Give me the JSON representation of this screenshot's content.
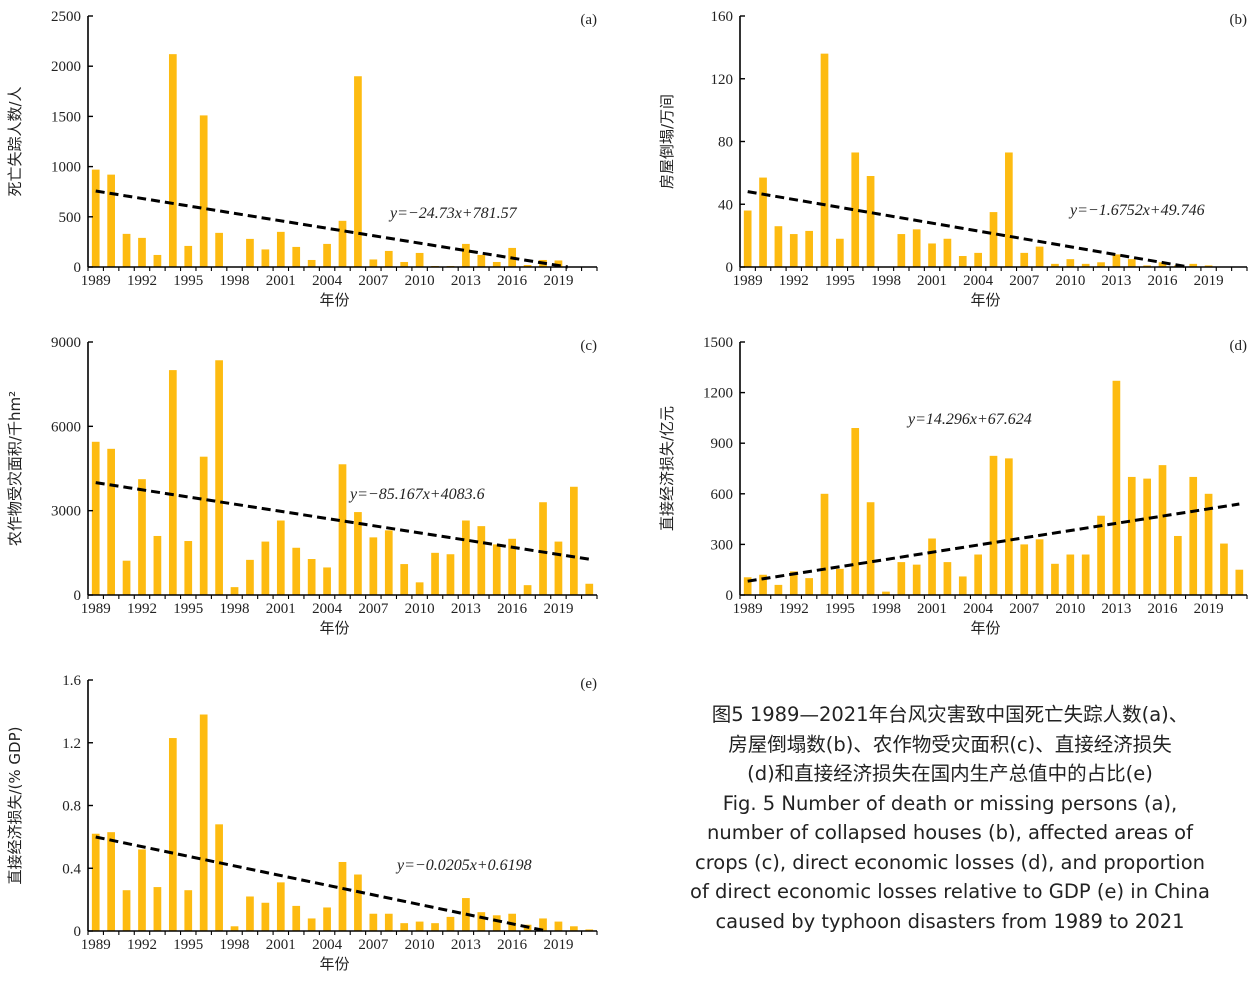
{
  "chart_data": [
    {
      "type": "bar",
      "panel_label": "(a)",
      "ylabel": "死亡失踪人数/人",
      "xlabel": "年份",
      "ylim": [
        0,
        2500
      ],
      "yticks": [
        0,
        500,
        1000,
        1500,
        2000,
        2500
      ],
      "xtick_labels": [
        "1989",
        "1992",
        "1995",
        "1998",
        "2001",
        "2004",
        "2007",
        "2010",
        "2013",
        "2016",
        "2019"
      ],
      "trendline": {
        "equation": "y=−24.73x+781.57",
        "slope": -24.73,
        "intercept": 781.57
      },
      "categories": [
        "1989",
        "1990",
        "1991",
        "1992",
        "1993",
        "1994",
        "1995",
        "1996",
        "1997",
        "1998",
        "1999",
        "2000",
        "2001",
        "2002",
        "2003",
        "2004",
        "2005",
        "2006",
        "2007",
        "2008",
        "2009",
        "2010",
        "2011",
        "2012",
        "2013",
        "2014",
        "2015",
        "2016",
        "2017",
        "2018",
        "2019",
        "2020",
        "2021"
      ],
      "values": [
        970,
        920,
        330,
        290,
        120,
        2120,
        210,
        1510,
        340,
        0,
        280,
        175,
        350,
        200,
        70,
        230,
        460,
        1900,
        75,
        160,
        50,
        140,
        10,
        10,
        230,
        120,
        50,
        190,
        20,
        70,
        65,
        0,
        0
      ]
    },
    {
      "type": "bar",
      "panel_label": "(b)",
      "ylabel": "房屋倒塌/万间",
      "xlabel": "年份",
      "ylim": [
        0,
        160
      ],
      "yticks": [
        0,
        40,
        80,
        120,
        160
      ],
      "xtick_labels": [
        "1989",
        "1992",
        "1995",
        "1998",
        "2001",
        "2004",
        "2007",
        "2010",
        "2013",
        "2016",
        "2019"
      ],
      "trendline": {
        "equation": "y=−1.6752x+49.746",
        "slope": -1.6752,
        "intercept": 49.746
      },
      "categories": [
        "1989",
        "1990",
        "1991",
        "1992",
        "1993",
        "1994",
        "1995",
        "1996",
        "1997",
        "1998",
        "1999",
        "2000",
        "2001",
        "2002",
        "2003",
        "2004",
        "2005",
        "2006",
        "2007",
        "2008",
        "2009",
        "2010",
        "2011",
        "2012",
        "2013",
        "2014",
        "2015",
        "2016",
        "2017",
        "2018",
        "2019",
        "2020",
        "2021"
      ],
      "values": [
        36,
        57,
        26,
        21,
        23,
        136,
        18,
        73,
        58,
        0,
        21,
        24,
        15,
        18,
        7,
        9,
        35,
        73,
        9,
        13,
        2,
        5,
        2,
        3,
        8,
        5,
        1,
        3,
        1,
        2,
        1,
        0,
        0
      ]
    },
    {
      "type": "bar",
      "panel_label": "(c)",
      "ylabel": "农作物受灾面积/千hm²",
      "xlabel": "年份",
      "ylim": [
        0,
        9000
      ],
      "yticks": [
        0,
        3000,
        6000,
        9000
      ],
      "xtick_labels": [
        "1989",
        "1992",
        "1995",
        "1998",
        "2001",
        "2004",
        "2007",
        "2010",
        "2013",
        "2016",
        "2019"
      ],
      "trendline": {
        "equation": "y=−85.167x+4083.6",
        "slope": -85.167,
        "intercept": 4083.6
      },
      "categories": [
        "1989",
        "1990",
        "1991",
        "1992",
        "1993",
        "1994",
        "1995",
        "1996",
        "1997",
        "1998",
        "1999",
        "2000",
        "2001",
        "2002",
        "2003",
        "2004",
        "2005",
        "2006",
        "2007",
        "2008",
        "2009",
        "2010",
        "2011",
        "2012",
        "2013",
        "2014",
        "2015",
        "2016",
        "2017",
        "2018",
        "2019",
        "2020",
        "2021"
      ],
      "values": [
        5450,
        5200,
        1220,
        4120,
        2100,
        8000,
        1920,
        4920,
        8350,
        280,
        1250,
        1900,
        2650,
        1680,
        1280,
        980,
        4650,
        2950,
        2050,
        2300,
        1100,
        450,
        1500,
        1450,
        2650,
        2450,
        1800,
        2000,
        350,
        3300,
        1900,
        3850,
        400
      ]
    },
    {
      "type": "bar",
      "panel_label": "(d)",
      "ylabel": "直接经济损失/亿元",
      "xlabel": "年份",
      "ylim": [
        0,
        1500
      ],
      "yticks": [
        0,
        300,
        600,
        900,
        1200,
        1500
      ],
      "xtick_labels": [
        "1989",
        "1992",
        "1995",
        "1998",
        "2001",
        "2004",
        "2007",
        "2010",
        "2013",
        "2016",
        "2019"
      ],
      "trendline": {
        "equation": "y=14.296x+67.624",
        "slope": 14.296,
        "intercept": 67.624
      },
      "categories": [
        "1989",
        "1990",
        "1991",
        "1992",
        "1993",
        "1994",
        "1995",
        "1996",
        "1997",
        "1998",
        "1999",
        "2000",
        "2001",
        "2002",
        "2003",
        "2004",
        "2005",
        "2006",
        "2007",
        "2008",
        "2009",
        "2010",
        "2011",
        "2012",
        "2013",
        "2014",
        "2015",
        "2016",
        "2017",
        "2018",
        "2019",
        "2020",
        "2021"
      ],
      "values": [
        105,
        120,
        60,
        140,
        100,
        600,
        155,
        990,
        550,
        20,
        195,
        180,
        335,
        195,
        110,
        240,
        825,
        810,
        300,
        330,
        185,
        240,
        240,
        470,
        1270,
        700,
        690,
        770,
        350,
        700,
        600,
        305,
        150
      ]
    },
    {
      "type": "bar",
      "panel_label": "(e)",
      "ylabel": "直接经济损失/(% GDP)",
      "xlabel": "年份",
      "ylim": [
        0,
        1.6
      ],
      "yticks": [
        0,
        0.4,
        0.8,
        1.2,
        1.6
      ],
      "xtick_labels": [
        "1989",
        "1992",
        "1995",
        "1998",
        "2001",
        "2004",
        "2007",
        "2010",
        "2013",
        "2016",
        "2019"
      ],
      "trendline": {
        "equation": "y=−0.0205x+0.6198",
        "slope": -0.0205,
        "intercept": 0.6198
      },
      "categories": [
        "1989",
        "1990",
        "1991",
        "1992",
        "1993",
        "1994",
        "1995",
        "1996",
        "1997",
        "1998",
        "1999",
        "2000",
        "2001",
        "2002",
        "2003",
        "2004",
        "2005",
        "2006",
        "2007",
        "2008",
        "2009",
        "2010",
        "2011",
        "2012",
        "2013",
        "2014",
        "2015",
        "2016",
        "2017",
        "2018",
        "2019",
        "2020",
        "2021"
      ],
      "values": [
        0.62,
        0.63,
        0.26,
        0.52,
        0.28,
        1.23,
        0.26,
        1.38,
        0.68,
        0.03,
        0.22,
        0.18,
        0.31,
        0.16,
        0.08,
        0.15,
        0.44,
        0.36,
        0.11,
        0.11,
        0.05,
        0.06,
        0.05,
        0.09,
        0.21,
        0.12,
        0.1,
        0.11,
        0.04,
        0.08,
        0.06,
        0.03,
        0.01
      ]
    }
  ],
  "caption": {
    "zh_line1": "图5  1989—2021年台风灾害致中国死亡失踪人数(a)、",
    "zh_line2": "房屋倒塌数(b)、农作物受灾面积(c)、直接经济损失",
    "zh_line3": "(d)和直接经济损失在国内生产总值中的占比(e)",
    "en_line1": "Fig. 5  Number of death or missing persons (a),",
    "en_line2": "number of collapsed houses (b), affected areas of",
    "en_line3": "crops (c), direct economic losses (d), and proportion",
    "en_line4": "of direct economic losses relative to GDP (e) in China",
    "en_line5": "caused by typhoon disasters from 1989 to 2021"
  },
  "colors": {
    "bar": "#FDBB11",
    "trend": "#000000",
    "axis": "#000000",
    "text": "#222222"
  }
}
